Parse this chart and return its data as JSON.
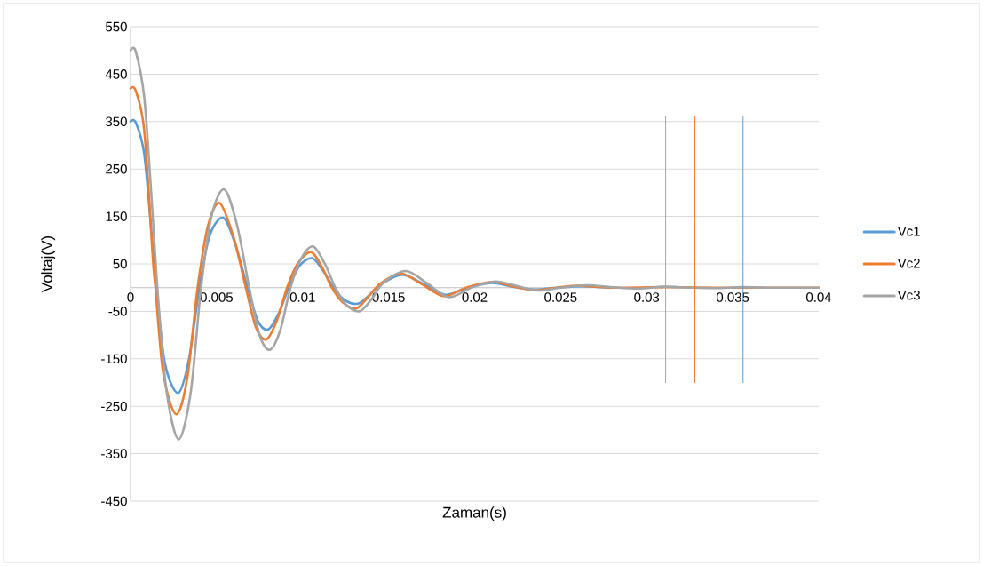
{
  "chart_data": {
    "type": "line",
    "xlabel": "Zaman(s)",
    "ylabel": "Voltaj(V)",
    "xlim": [
      0,
      0.04
    ],
    "ylim": [
      -450,
      550
    ],
    "xticks": [
      0,
      0.005,
      0.01,
      0.015,
      0.02,
      0.025,
      0.03,
      0.035,
      0.04
    ],
    "yticks": [
      -450,
      -350,
      -250,
      -150,
      -50,
      50,
      150,
      250,
      350,
      450,
      550
    ],
    "grid": "y",
    "legend": "right",
    "marker": "none",
    "line_style": "solid",
    "series": [
      {
        "name": "Vc1",
        "color": "#5b9bd5",
        "x": [
          0,
          0.0003,
          0.0008,
          0.0013,
          0.0015,
          0.002,
          0.00277,
          0.0034,
          0.004,
          0.0046,
          0.0054,
          0.0061,
          0.0068,
          0.0074,
          0.008,
          0.0086,
          0.0092,
          0.0098,
          0.01055,
          0.0112,
          0.0118,
          0.0124,
          0.0132,
          0.0139,
          0.0146,
          0.0158,
          0.017,
          0.0183,
          0.0196,
          0.021,
          0.0222,
          0.0235,
          0.0248,
          0.0262,
          0.028
        ],
        "values": [
          350,
          348,
          280,
          80,
          0,
          -160,
          -222,
          -150,
          0,
          110,
          147,
          90,
          0,
          -70,
          -88,
          -55,
          0,
          45,
          62,
          35,
          0,
          -25,
          -34,
          -15,
          8,
          27,
          8,
          -15,
          0,
          10,
          2,
          -4,
          0,
          3,
          0
        ]
      },
      {
        "name": "Vc2",
        "color": "#ed7d31",
        "x": [
          0,
          0.0003,
          0.0008,
          0.0013,
          0.00145,
          0.0019,
          0.00265,
          0.0033,
          0.0039,
          0.0045,
          0.00518,
          0.006,
          0.0067,
          0.0073,
          0.0079,
          0.0085,
          0.0091,
          0.0097,
          0.01048,
          0.0111,
          0.0117,
          0.0123,
          0.0131,
          0.0138,
          0.0145,
          0.0157,
          0.0169,
          0.0182,
          0.0195,
          0.021,
          0.0222,
          0.0235,
          0.0248,
          0.026,
          0.028,
          0.031,
          0.034,
          0.04
        ],
        "values": [
          420,
          415,
          330,
          60,
          0,
          -180,
          -267,
          -190,
          0,
          130,
          178,
          105,
          0,
          -85,
          -109,
          -70,
          0,
          50,
          75,
          45,
          0,
          -30,
          -44,
          -20,
          8,
          30,
          8,
          -18,
          0,
          12,
          3,
          -5,
          0,
          4,
          0,
          1,
          0,
          0
        ]
      },
      {
        "name": "Vc3",
        "color": "#a5a5a5",
        "x": [
          0,
          0.0003,
          0.0008,
          0.0012,
          0.0016,
          0.0021,
          0.0028,
          0.0035,
          0.0041,
          0.0047,
          0.00545,
          0.0062,
          0.0069,
          0.0075,
          0.0081,
          0.0087,
          0.0093,
          0.0099,
          0.0106,
          0.0113,
          0.0119,
          0.0125,
          0.0133,
          0.014,
          0.0147,
          0.016,
          0.0172,
          0.0185,
          0.0198,
          0.0212,
          0.0225,
          0.0237,
          0.025,
          0.0265,
          0.028,
          0.0295,
          0.031,
          0.0325,
          0.034,
          0.0355,
          0.037,
          0.04
        ],
        "values": [
          500,
          498,
          400,
          200,
          -20,
          -220,
          -320,
          -220,
          0,
          150,
          207,
          130,
          0,
          -100,
          -131,
          -90,
          0,
          60,
          87,
          50,
          0,
          -35,
          -50,
          -25,
          10,
          35,
          10,
          -20,
          0,
          13,
          3,
          -6,
          0,
          5,
          1,
          -2,
          2,
          0,
          -1,
          1,
          0,
          0
        ]
      },
      {
        "color": "#a5a5a5",
        "x": [
          0.0311,
          0.0311
        ],
        "values": [
          -200,
          360
        ]
      },
      {
        "color": "#ed7d31",
        "x": [
          0.0328,
          0.0328
        ],
        "values": [
          -200,
          360
        ]
      },
      {
        "color": "#5b9bd5",
        "x": [
          0.0356,
          0.0356
        ],
        "values": [
          -200,
          360
        ]
      }
    ]
  }
}
